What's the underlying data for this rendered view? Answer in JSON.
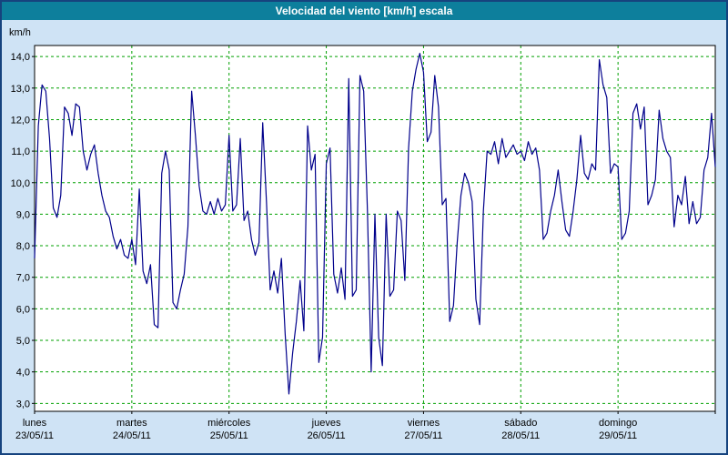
{
  "title": "Velocidad del viento [km/h] escala",
  "colors": {
    "frame_border": "#16437e",
    "titlebar_bg": "#0d7f9c",
    "titlebar_text": "#ffffff",
    "body_bg": "#cfe3f5",
    "plot_bg": "#ffffff",
    "grid": "#00a000",
    "axis": "#000000",
    "line": "#00008b",
    "label_text": "#000000"
  },
  "chart_data": {
    "type": "line",
    "title": "Velocidad del viento [km/h] escala",
    "ylabel": "km/h",
    "unit_label": "km/h",
    "ylim": [
      3,
      14
    ],
    "y_ticks": [
      3,
      4,
      5,
      6,
      7,
      8,
      9,
      10,
      11,
      12,
      13,
      14
    ],
    "grid": true,
    "legend": "none",
    "x_days": [
      {
        "name": "lunes",
        "date": "23/05/11"
      },
      {
        "name": "martes",
        "date": "24/05/11"
      },
      {
        "name": "miércoles",
        "date": "25/05/11"
      },
      {
        "name": "jueves",
        "date": "26/05/11"
      },
      {
        "name": "viernes",
        "date": "27/05/11"
      },
      {
        "name": "sábado",
        "date": "28/05/11"
      },
      {
        "name": "domingo",
        "date": "29/05/11"
      }
    ],
    "series_name": "Velocidad del viento",
    "values": [
      7.6,
      11.8,
      13.1,
      12.9,
      11.4,
      9.2,
      8.9,
      9.6,
      12.4,
      12.2,
      11.5,
      12.5,
      12.4,
      11.0,
      10.4,
      10.9,
      11.2,
      10.3,
      9.6,
      9.1,
      8.9,
      8.3,
      7.9,
      8.2,
      7.7,
      7.6,
      8.2,
      7.4,
      9.8,
      7.2,
      6.8,
      7.4,
      5.5,
      5.4,
      10.3,
      11.0,
      10.4,
      6.2,
      6.0,
      6.6,
      7.1,
      8.6,
      12.9,
      11.5,
      9.9,
      9.1,
      9.0,
      9.4,
      9.0,
      9.5,
      9.1,
      9.3,
      11.5,
      9.1,
      9.3,
      11.4,
      8.8,
      9.1,
      8.2,
      7.7,
      8.1,
      11.9,
      9.4,
      6.6,
      7.2,
      6.5,
      7.6,
      5.2,
      3.3,
      4.6,
      5.6,
      6.9,
      5.3,
      11.8,
      10.4,
      10.9,
      4.3,
      5.1,
      10.6,
      11.1,
      7.1,
      6.5,
      7.3,
      6.3,
      13.3,
      6.4,
      6.6,
      13.4,
      12.9,
      9.1,
      4.0,
      9.0,
      5.1,
      4.2,
      9.0,
      6.4,
      6.6,
      9.1,
      8.8,
      6.9,
      11.1,
      12.9,
      13.6,
      14.1,
      13.5,
      11.3,
      11.6,
      13.4,
      12.4,
      9.3,
      9.5,
      5.6,
      6.1,
      8.1,
      9.6,
      10.3,
      10.0,
      9.4,
      6.3,
      5.5,
      9.1,
      11.0,
      10.9,
      11.3,
      10.6,
      11.4,
      10.8,
      11.0,
      11.2,
      10.9,
      11.0,
      10.7,
      11.3,
      10.9,
      11.1,
      10.4,
      8.2,
      8.4,
      9.1,
      9.6,
      10.4,
      9.4,
      8.5,
      8.3,
      9.1,
      10.1,
      11.5,
      10.3,
      10.1,
      10.6,
      10.4,
      13.9,
      13.1,
      12.7,
      10.3,
      10.6,
      10.5,
      8.2,
      8.4,
      9.1,
      12.2,
      12.5,
      11.7,
      12.4,
      9.3,
      9.6,
      10.1,
      12.3,
      11.4,
      11.0,
      10.8,
      8.6,
      9.6,
      9.3,
      10.2,
      8.7,
      9.4,
      8.7,
      8.9,
      10.4,
      10.8,
      12.2,
      10.5
    ]
  }
}
